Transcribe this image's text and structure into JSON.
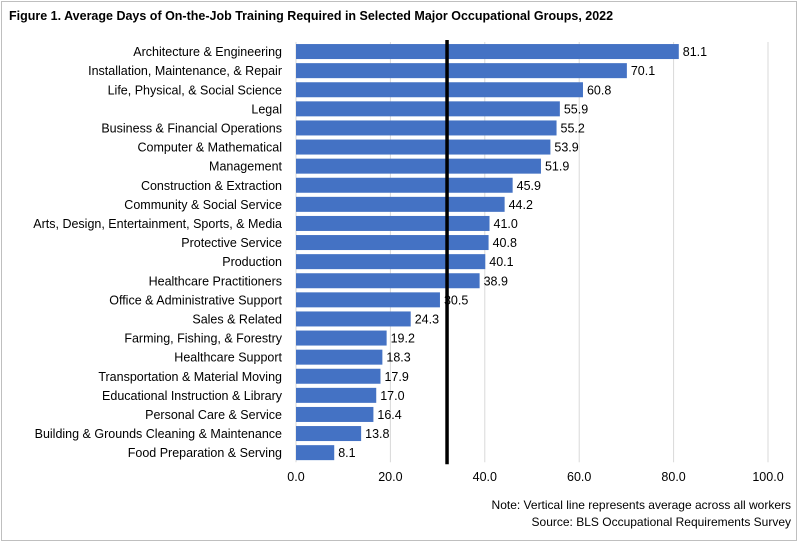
{
  "chart_data": {
    "type": "bar",
    "orientation": "horizontal",
    "title": "Figure 1. Average Days of On-the-Job Training Required in Selected Major Occupational Groups, 2022",
    "categories": [
      "Architecture & Engineering",
      "Installation, Maintenance, & Repair",
      "Life, Physical, & Social Science",
      "Legal",
      "Business & Financial Operations",
      "Computer & Mathematical",
      "Management",
      "Construction & Extraction",
      "Community & Social Service",
      "Arts, Design, Entertainment, Sports, & Media",
      "Protective Service",
      "Production",
      "Healthcare Practitioners",
      "Office & Administrative Support",
      "Sales & Related",
      "Farming, Fishing, & Forestry",
      "Healthcare Support",
      "Transportation & Material Moving",
      "Educational Instruction & Library",
      "Personal Care & Service",
      "Building & Grounds Cleaning & Maintenance",
      "Food Preparation & Serving"
    ],
    "values": [
      81.1,
      70.1,
      60.8,
      55.9,
      55.2,
      53.9,
      51.9,
      45.9,
      44.2,
      41.0,
      40.8,
      40.1,
      38.9,
      30.5,
      24.3,
      19.2,
      18.3,
      17.9,
      17.0,
      16.4,
      13.8,
      8.1
    ],
    "value_labels": [
      "81.1",
      "70.1",
      "60.8",
      "55.9",
      "55.2",
      "53.9",
      "51.9",
      "45.9",
      "44.2",
      "41.0",
      "40.8",
      "40.1",
      "38.9",
      "30.5",
      "24.3",
      "19.2",
      "18.3",
      "17.9",
      "17.0",
      "16.4",
      "13.8",
      "8.1"
    ],
    "xlim": [
      0,
      100
    ],
    "x_ticks": [
      0,
      20,
      40,
      60,
      80,
      100
    ],
    "x_tick_labels": [
      "0.0",
      "20.0",
      "40.0",
      "60.0",
      "80.0",
      "100.0"
    ],
    "reference_line_value": 32,
    "gridlines": true,
    "bar_color": "#4472c4",
    "grid_color": "#d9d9d9",
    "reference_line_color": "#000000",
    "notes": [
      "Note: Vertical line represents average across all workers",
      "Source: BLS Occupational Requirements Survey"
    ]
  }
}
